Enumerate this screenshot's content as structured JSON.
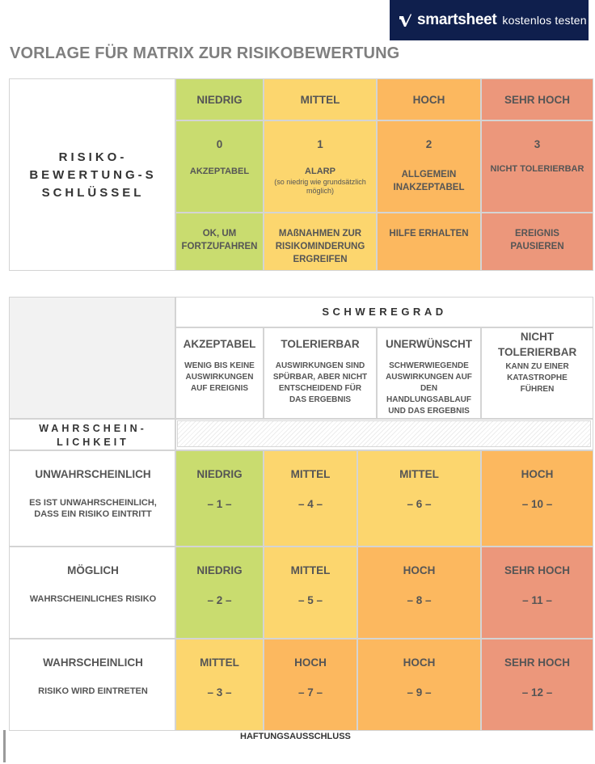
{
  "banner": {
    "brand": "smartsheet",
    "cta": "kostenlos testen"
  },
  "title": "VORLAGE FÜR MATRIX ZUR RISIKOBEWERTUNG",
  "key": {
    "label_lines": [
      "RISIKO-",
      "BEWERTUNG-S",
      "SCHLÜSSEL"
    ],
    "columns": [
      {
        "level": "NIEDRIG",
        "score": "0",
        "rating": "AKZEPTABEL",
        "note": "",
        "action": "OK, UM FORTZUFAHREN"
      },
      {
        "level": "MITTEL",
        "score": "1",
        "rating": "ALARP",
        "note": "(so niedrig wie grundsätzlich möglich)",
        "action": "MAßNAHMEN ZUR RISIKOMINDERUNG ERGREIFEN"
      },
      {
        "level": "HOCH",
        "score": "2",
        "rating": "ALLGEMEIN INAKZEPTABEL",
        "note": "",
        "action": "HILFE ERHALTEN"
      },
      {
        "level": "SEHR HOCH",
        "score": "3",
        "rating": "NICHT TOLERIERBAR",
        "note": "",
        "action": "EREIGNIS PAUSIEREN"
      }
    ]
  },
  "matrix": {
    "severity_title": "SCHWEREGRAD",
    "likelihood_lines": [
      "WAHRSCHEIN-",
      "LICHKEIT"
    ],
    "severity": [
      {
        "title": "AKZEPTABEL",
        "desc": "WENIG BIS KEINE AUSWIRKUNGEN AUF EREIGNIS"
      },
      {
        "title": "TOLERIERBAR",
        "desc": "AUSWIRKUNGEN SIND SPÜRBAR, ABER NICHT ENTSCHEIDEND FÜR DAS ERGEBNIS"
      },
      {
        "title": "UNERWÜNSCHT",
        "desc": "SCHWERWIEGENDE AUSWIRKUNGEN AUF DEN HANDLUNGSABLAUF UND DAS ERGEBNIS"
      },
      {
        "title": "NICHT TOLERIERBAR",
        "desc": "KANN ZU EINER KATASTROPHE FÜHREN"
      }
    ],
    "rows": [
      {
        "title": "UNWAHRSCHEINLICH",
        "desc": "ES IST UNWAHRSCHEINLICH, DASS EIN RISIKO EINTRITT",
        "cells": [
          {
            "level": "NIEDRIG",
            "score": "– 1 –",
            "color": "#c9dc6f"
          },
          {
            "level": "MITTEL",
            "score": "– 4 –",
            "color": "#fcd66e"
          },
          {
            "level": "MITTEL",
            "score": "– 6 –",
            "color": "#fcd66e"
          },
          {
            "level": "HOCH",
            "score": "– 10 –",
            "color": "#fcb85f"
          }
        ]
      },
      {
        "title": "MÖGLICH",
        "desc": "WAHRSCHEINLICHES RISIKO",
        "cells": [
          {
            "level": "NIEDRIG",
            "score": "– 2 –",
            "color": "#c9dc6f"
          },
          {
            "level": "MITTEL",
            "score": "– 5 –",
            "color": "#fcd66e"
          },
          {
            "level": "HOCH",
            "score": "– 8 –",
            "color": "#fcb85f"
          },
          {
            "level": "SEHR HOCH",
            "score": "– 11 –",
            "color": "#ec977b"
          }
        ]
      },
      {
        "title": "WAHRSCHEINLICH",
        "desc": "RISIKO WIRD EINTRETEN",
        "cells": [
          {
            "level": "MITTEL",
            "score": "– 3 –",
            "color": "#fcd66e"
          },
          {
            "level": "HOCH",
            "score": "– 7 –",
            "color": "#fcb85f"
          },
          {
            "level": "HOCH",
            "score": "– 9 –",
            "color": "#fcb85f"
          },
          {
            "level": "SEHR HOCH",
            "score": "– 12 –",
            "color": "#ec977b"
          }
        ]
      }
    ]
  },
  "footer": {
    "disclaimer": "HAFTUNGSAUSSCHLUSS"
  }
}
